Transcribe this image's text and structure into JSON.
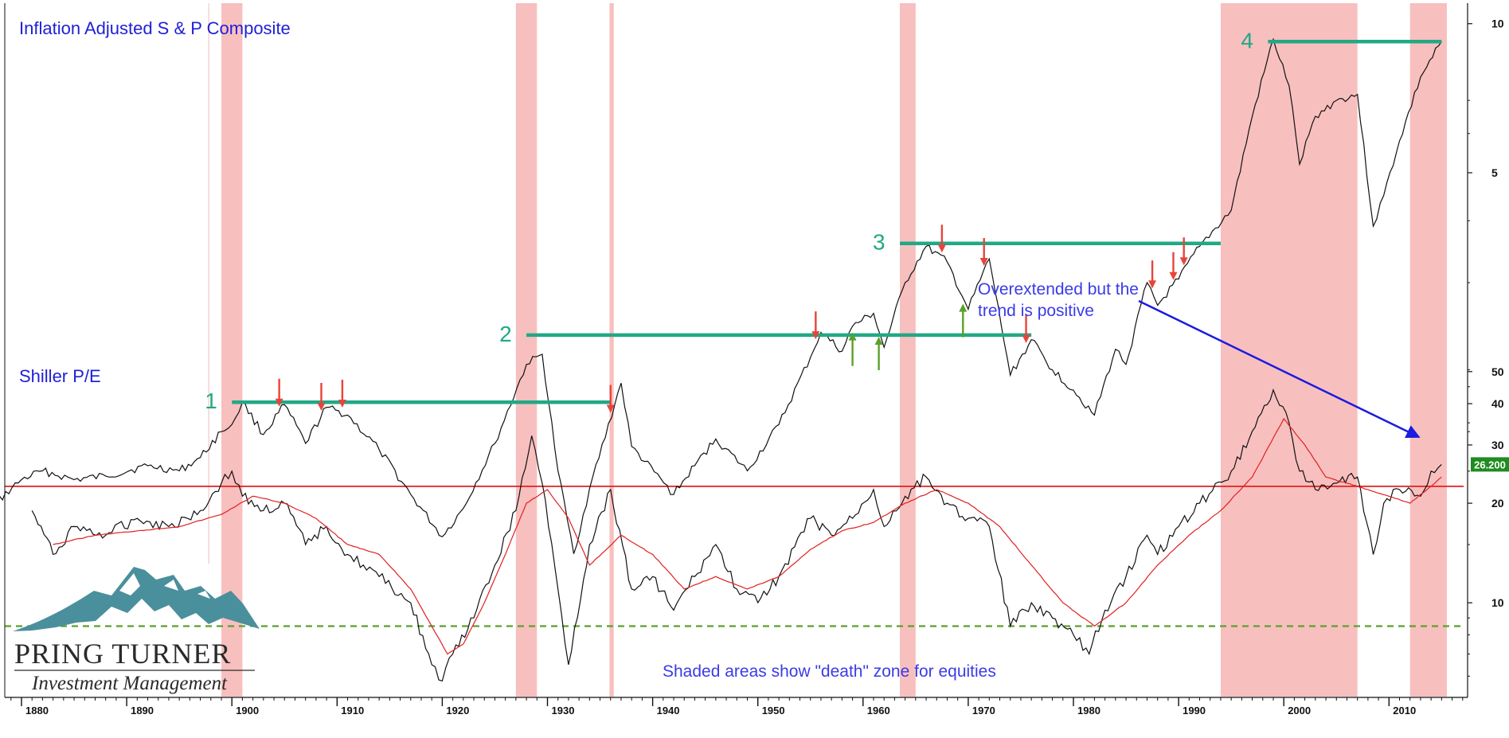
{
  "chart_data": [
    {
      "type": "line",
      "title": "Inflation Adjusted S & P Composite",
      "y_scale": "log",
      "ylim": [
        0.8,
        11
      ],
      "y_ticks": [
        {
          "value": 10,
          "label": "10"
        },
        {
          "value": 5,
          "label": "5"
        }
      ],
      "series": [
        {
          "x": [
            1871,
            1874,
            1877,
            1880,
            1882,
            1885,
            1888,
            1892,
            1895,
            1897,
            1899,
            1900,
            1901,
            1903,
            1905,
            1907,
            1909,
            1911,
            1914,
            1917,
            1920,
            1922,
            1925,
            1928,
            1929.5,
            1931,
            1932.5,
            1934,
            1937,
            1938,
            1942,
            1944,
            1946,
            1949,
            1952,
            1955,
            1956,
            1958,
            1959,
            1961,
            1962,
            1964,
            1966,
            1968,
            1970,
            1972,
            1974,
            1976,
            1978,
            1980,
            1982,
            1984,
            1985,
            1987,
            1988,
            1990,
            1992,
            1995,
            1997,
            1999,
            2000.5,
            2001.5,
            2003,
            2005,
            2007,
            2008.5,
            2009.5,
            2011,
            2013,
            2015
          ],
          "values": [
            0.95,
            1.15,
            1.05,
            1.2,
            1.25,
            1.2,
            1.22,
            1.28,
            1.25,
            1.33,
            1.5,
            1.55,
            1.72,
            1.48,
            1.7,
            1.42,
            1.68,
            1.62,
            1.38,
            1.12,
            0.92,
            1.05,
            1.42,
            2.05,
            2.15,
            1.25,
            0.85,
            1.15,
            1.88,
            1.4,
            1.12,
            1.28,
            1.45,
            1.25,
            1.55,
            2.12,
            2.38,
            2.18,
            2.45,
            2.6,
            2.22,
            3.0,
            3.55,
            3.3,
            2.65,
            3.35,
            1.95,
            2.3,
            2.0,
            1.82,
            1.62,
            2.2,
            2.05,
            3.0,
            2.7,
            3.05,
            3.55,
            4.2,
            6.5,
            9.3,
            7.5,
            5.2,
            6.5,
            7.0,
            7.2,
            3.9,
            4.5,
            5.8,
            7.8,
            9.2
          ]
        }
      ],
      "horizontal_levels": [
        {
          "label": "1",
          "value": 1.72,
          "x_start": 1900,
          "x_end": 1936
        },
        {
          "label": "2",
          "value": 2.35,
          "x_start": 1928,
          "x_end": 1976
        },
        {
          "label": "3",
          "value": 3.6,
          "x_start": 1963.5,
          "x_end": 1994
        },
        {
          "label": "4",
          "value": 9.2,
          "x_start": 1998.5,
          "x_end": 2015
        }
      ],
      "down_arrows_years": [
        1904.5,
        1908.5,
        1910.5,
        1936,
        1955.5,
        1967.5,
        1971.5,
        1975.5,
        1987.5,
        1989.5,
        1990.5
      ],
      "up_arrows_years": [
        1959,
        1961.5,
        1969.5
      ],
      "annotation": "Overextended but the trend is positive"
    },
    {
      "type": "line",
      "title": "Shiller P/E",
      "y_scale": "log",
      "ylim": [
        5.5,
        58
      ],
      "y_ticks": [
        {
          "value": 50,
          "label": "50"
        },
        {
          "value": 40,
          "label": "40"
        },
        {
          "value": 30,
          "label": "30"
        },
        {
          "value": 20,
          "label": "20"
        },
        {
          "value": 10,
          "label": "10"
        }
      ],
      "current_value": "26.200",
      "series": [
        {
          "name": "Shiller P/E",
          "x": [
            1881,
            1883,
            1885,
            1888,
            1891,
            1894,
            1897,
            1899,
            1900,
            1901,
            1903,
            1905,
            1907,
            1909,
            1911,
            1914,
            1917,
            1919,
            1920,
            1921,
            1923,
            1925,
            1927,
            1928.5,
            1929.5,
            1931,
            1932,
            1934,
            1936,
            1938,
            1940,
            1942,
            1944,
            1946,
            1948,
            1950,
            1952,
            1955,
            1957,
            1959,
            1961,
            1962,
            1964,
            1966,
            1968,
            1970,
            1972,
            1974,
            1976,
            1978,
            1980,
            1981.5,
            1983,
            1985,
            1987,
            1988,
            1990,
            1992,
            1995,
            1997,
            1999,
            2000.5,
            2001.5,
            2003,
            2005,
            2007,
            2008.5,
            2009.5,
            2011,
            2013,
            2014,
            2015
          ],
          "values": [
            19,
            14,
            17,
            16,
            18,
            17,
            19,
            23,
            25,
            21,
            19,
            20,
            15,
            17,
            14,
            12,
            10,
            6.5,
            5.8,
            7,
            9,
            13,
            19,
            32,
            23,
            11,
            6.5,
            15,
            22,
            11,
            12,
            9.5,
            12,
            15,
            11,
            10,
            12,
            18,
            16,
            18,
            22,
            17,
            21,
            24,
            20,
            18,
            17,
            8.5,
            10,
            9,
            8,
            7,
            9.5,
            12,
            16,
            14,
            17,
            20,
            25,
            33,
            44,
            35,
            25,
            22,
            23,
            24,
            14,
            20,
            22,
            21,
            25,
            26.2
          ]
        },
        {
          "name": "Moving average",
          "x": [
            1883,
            1887,
            1891,
            1895,
            1899,
            1902,
            1905,
            1908,
            1911,
            1914,
            1917,
            1919,
            1920.5,
            1922,
            1924,
            1926,
            1928,
            1930,
            1932,
            1934,
            1937,
            1940,
            1943,
            1946,
            1949,
            1952,
            1955,
            1958,
            1961,
            1964,
            1967,
            1970,
            1973,
            1976,
            1979,
            1982,
            1985,
            1988,
            1991,
            1994,
            1997,
            2000,
            2002,
            2004,
            2006,
            2008,
            2010,
            2012,
            2014,
            2015
          ],
          "values": [
            15,
            16,
            16.5,
            17,
            18.5,
            21,
            20,
            18,
            15,
            14,
            11,
            8.5,
            7,
            7.5,
            10,
            14,
            20,
            22,
            18,
            13,
            16,
            14,
            11,
            12,
            11,
            12,
            14.5,
            16.5,
            17.5,
            20,
            22,
            20,
            17,
            13,
            10,
            8.5,
            10,
            13,
            16,
            19,
            24,
            36,
            30,
            24,
            23,
            22,
            21,
            20,
            22.5,
            24
          ]
        }
      ],
      "reference_line": 22.5,
      "dashed_line": 8.5
    }
  ],
  "shaded_zones": [
    [
      1899,
      1901
    ],
    [
      1927,
      1929
    ],
    [
      1935.9,
      1936.3
    ],
    [
      1963.5,
      1965
    ],
    [
      1994,
      2007
    ],
    [
      2012,
      2015.5
    ]
  ],
  "x_axis": {
    "ticks": [
      "1880",
      "1890",
      "1900",
      "1910",
      "1920",
      "1930",
      "1940",
      "1950",
      "1960",
      "1970",
      "1980",
      "1990",
      "2000",
      "2010"
    ]
  },
  "annotations": {
    "overextended_line1": "Overextended but the",
    "overextended_line2": "trend is positive",
    "shaded_note": "Shaded areas show \"death\" zone for equities"
  },
  "logo": {
    "name": "PRING TURNER",
    "subtitle": "Investment Management"
  },
  "colors": {
    "shade": "#f7b8b8",
    "level_line": "#22a884",
    "down_arrow": "#e8443a",
    "up_arrow": "#5aa02c",
    "pe_reference": "#e02020",
    "moving_average": "#e02020",
    "dashed": "#5aa02c",
    "text_blue": "#1f1fd6",
    "annotation_blue": "#3b3be8",
    "mountain": "#4a8f9c",
    "value_badge": "#1e8c1e"
  }
}
